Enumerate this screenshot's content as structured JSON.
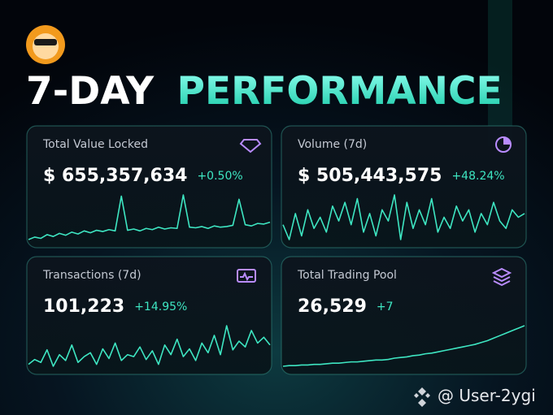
{
  "header": {
    "title_lead": "7-DAY",
    "title_accent": "PERFORMANCE"
  },
  "cards": [
    {
      "label": "Total Value Locked",
      "value": "$ 655,357,634",
      "change": "+0.50%",
      "sparkline": [
        10,
        14,
        12,
        18,
        15,
        20,
        17,
        22,
        19,
        24,
        21,
        25,
        23,
        26,
        24,
        80,
        25,
        27,
        24,
        28,
        26,
        30,
        27,
        29,
        28,
        82,
        30,
        29,
        31,
        28,
        32,
        30,
        31,
        33,
        75,
        34,
        32,
        36,
        35,
        38
      ]
    },
    {
      "label": "Volume (7d)",
      "value": "$ 505,443,575",
      "change": "+48.24%",
      "sparkline": [
        40,
        20,
        55,
        25,
        60,
        35,
        50,
        30,
        65,
        45,
        70,
        40,
        75,
        30,
        55,
        25,
        60,
        45,
        80,
        20,
        70,
        35,
        60,
        40,
        75,
        30,
        50,
        35,
        65,
        45,
        60,
        30,
        55,
        40,
        70,
        45,
        35,
        60,
        50,
        55
      ]
    },
    {
      "label": "Transactions (7d)",
      "value": "101,223",
      "change": "+14.95%",
      "sparkline": [
        40,
        45,
        42,
        55,
        38,
        50,
        44,
        60,
        42,
        48,
        52,
        40,
        56,
        46,
        62,
        44,
        50,
        48,
        58,
        45,
        54,
        40,
        60,
        50,
        66,
        48,
        56,
        44,
        62,
        52,
        70,
        50,
        80,
        55,
        64,
        58,
        75,
        62,
        68,
        60
      ]
    },
    {
      "label": "Total Trading Pool",
      "value": "26,529",
      "change": "+7",
      "sparkline": [
        5,
        6,
        6,
        7,
        7,
        8,
        8,
        9,
        10,
        10,
        11,
        12,
        12,
        13,
        14,
        15,
        15,
        16,
        18,
        19,
        20,
        22,
        23,
        25,
        26,
        28,
        30,
        32,
        34,
        36,
        38,
        40,
        43,
        46,
        50,
        54,
        58,
        62,
        66,
        70
      ]
    }
  ],
  "watermark": "@ User-2ygi"
}
